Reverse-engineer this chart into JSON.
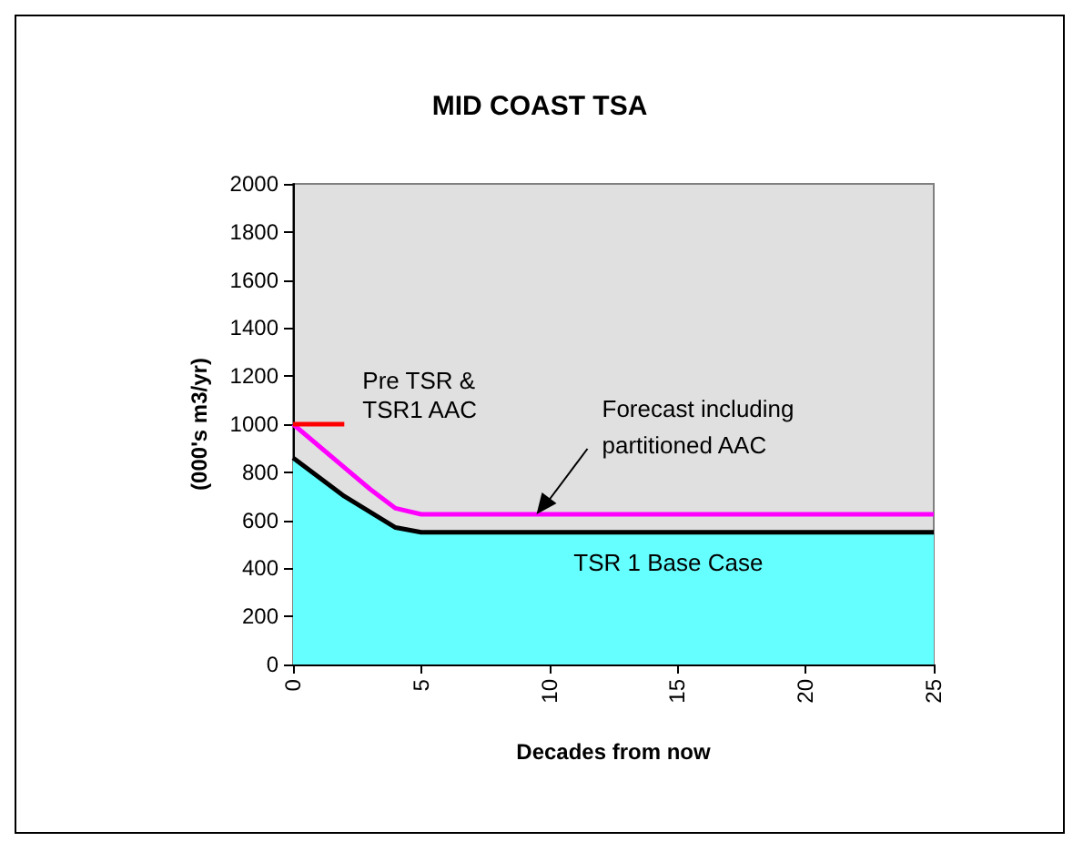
{
  "chart_data": {
    "type": "line",
    "title": "MID COAST TSA",
    "xlabel": "Decades from now",
    "ylabel": "(000's m3/yr)",
    "xlim": [
      0,
      25
    ],
    "xticks": [
      0,
      5,
      10,
      15,
      20,
      25
    ],
    "ylim": [
      0,
      2000
    ],
    "yticks": [
      0,
      200,
      400,
      600,
      800,
      1000,
      1200,
      1400,
      1600,
      1800,
      2000
    ],
    "grid": false,
    "legend": false,
    "marker": "none",
    "series": [
      {
        "name": "TSR 1 Base Case",
        "type": "area",
        "color": "#66ffff",
        "x": [
          0,
          2,
          4,
          5,
          25
        ],
        "values": [
          860,
          700,
          570,
          550,
          550
        ]
      },
      {
        "name": "Forecast including partitioned AAC",
        "color": "#ff00ff",
        "x": [
          0,
          3,
          4,
          5,
          25
        ],
        "values": [
          1000,
          730,
          650,
          625,
          625
        ]
      },
      {
        "name": "Pre TSR & TSR1 AAC",
        "color": "#ff0000",
        "x": [
          0,
          2
        ],
        "values": [
          1000,
          1000
        ]
      }
    ]
  }
}
